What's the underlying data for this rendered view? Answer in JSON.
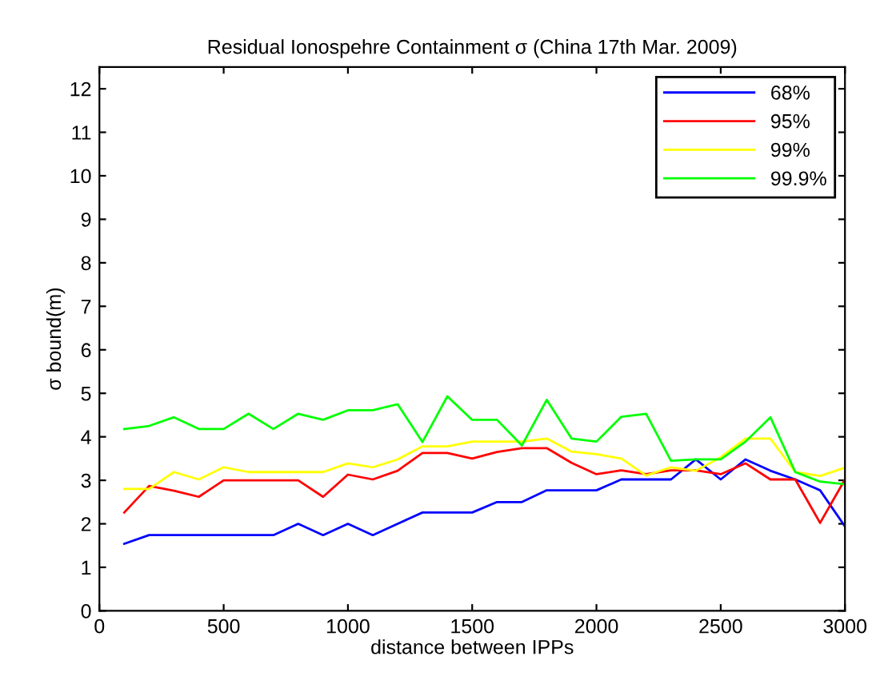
{
  "chart_data": {
    "type": "line",
    "title": "Residual Ionospehre Containment σ (China 17th Mar. 2009)",
    "xlabel": "distance between IPPs",
    "ylabel": "σ bound(m)",
    "x": [
      100,
      200,
      300,
      400,
      500,
      600,
      700,
      800,
      900,
      1000,
      1100,
      1200,
      1300,
      1400,
      1500,
      1600,
      1700,
      1800,
      1900,
      2000,
      2100,
      2200,
      2300,
      2400,
      2500,
      2600,
      2700,
      2800,
      2900,
      3000
    ],
    "series": [
      {
        "name": "68%",
        "color": "#0000ff",
        "values": [
          1.54,
          1.74,
          1.74,
          1.74,
          1.74,
          1.74,
          1.74,
          2.0,
          1.74,
          2.0,
          1.74,
          2.0,
          2.26,
          2.26,
          2.26,
          2.5,
          2.5,
          2.77,
          2.77,
          2.77,
          3.02,
          3.02,
          3.02,
          3.48,
          3.02,
          3.48,
          3.22,
          3.02,
          2.77,
          1.94
        ]
      },
      {
        "name": "95%",
        "color": "#ff0000",
        "values": [
          2.26,
          2.87,
          2.76,
          2.62,
          3.0,
          3.0,
          3.0,
          3.0,
          2.62,
          3.13,
          3.02,
          3.22,
          3.63,
          3.63,
          3.5,
          3.65,
          3.74,
          3.74,
          3.4,
          3.14,
          3.23,
          3.14,
          3.23,
          3.23,
          3.14,
          3.39,
          3.02,
          3.02,
          2.02,
          3.02
        ]
      },
      {
        "name": "99%",
        "color": "#ffff00",
        "values": [
          2.8,
          2.8,
          3.19,
          3.02,
          3.3,
          3.19,
          3.19,
          3.19,
          3.19,
          3.39,
          3.3,
          3.48,
          3.78,
          3.78,
          3.89,
          3.89,
          3.89,
          3.96,
          3.66,
          3.6,
          3.5,
          3.11,
          3.3,
          3.22,
          3.53,
          3.96,
          3.96,
          3.19,
          3.1,
          3.29
        ]
      },
      {
        "name": "99.9%",
        "color": "#00ff00",
        "values": [
          4.18,
          4.25,
          4.45,
          4.18,
          4.18,
          4.53,
          4.18,
          4.53,
          4.39,
          4.61,
          4.61,
          4.75,
          3.88,
          4.93,
          4.39,
          4.39,
          3.8,
          4.85,
          3.96,
          3.89,
          4.46,
          4.53,
          3.45,
          3.48,
          3.48,
          3.89,
          4.45,
          3.19,
          2.97,
          2.91
        ]
      }
    ],
    "xlim": [
      0,
      3000
    ],
    "ylim": [
      0,
      12.5
    ],
    "xticks": [
      0,
      500,
      1000,
      1500,
      2000,
      2500,
      3000
    ],
    "yticks": [
      0,
      1,
      2,
      3,
      4,
      5,
      6,
      7,
      8,
      9,
      10,
      11,
      12
    ],
    "legend": "top right",
    "grid": false,
    "marker": "none",
    "line_style": "solid"
  }
}
